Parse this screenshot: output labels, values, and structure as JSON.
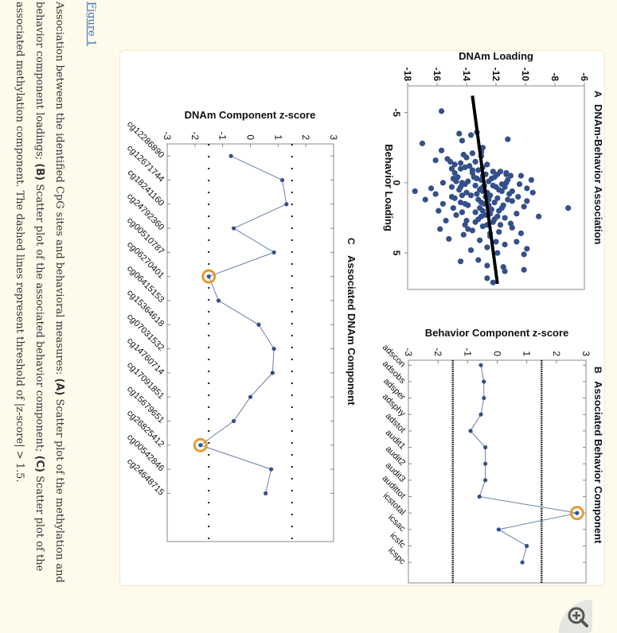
{
  "figure_link": "Figure 1",
  "caption": {
    "intro": "Association between the identified CpG sites and behavioral measures: ",
    "a_label": "(A)",
    "a_text": " Scatter plot of the methylation and behavior component loadings; ",
    "b_label": "(B)",
    "b_text": " Scatter plot of the associated behavior component; ",
    "c_label": "(C)",
    "c_text": " Scatter plot of the associated methylation component. The dashed lines represent threshold of |z-score| > 1.5."
  },
  "zoom_button": "zoom-in-icon",
  "colors": {
    "point": "#34508a",
    "highlight": "#e39b2f",
    "line": "#000000"
  },
  "chart_data": [
    {
      "panel": "A",
      "type": "scatter",
      "title": "DNAm-Behavior Association",
      "xlabel": "Behavior Loading",
      "ylabel": "DNAm Loading",
      "xlim": [
        -6.9,
        7.6
      ],
      "ylim": [
        -18,
        -6
      ],
      "xticks": [
        -5,
        0,
        5
      ],
      "yticks": [
        -18,
        -16,
        -14,
        -12,
        -10,
        -8,
        -6
      ],
      "grid": false,
      "regression_line": [
        [
          -6.2,
          -13.6
        ],
        [
          7.2,
          -11.9
        ]
      ],
      "points": [
        [
          -5.1,
          -15.7
        ],
        [
          -3.6,
          -13.3
        ],
        [
          -3.5,
          -14.5
        ],
        [
          -3.4,
          -13.7
        ],
        [
          -3.1,
          -11.2
        ],
        [
          -3.0,
          -14.3
        ],
        [
          -2.8,
          -17.0
        ],
        [
          -2.5,
          -12.9
        ],
        [
          -2.2,
          -13.0
        ],
        [
          -2.3,
          -15.7
        ],
        [
          -1.9,
          -13.0
        ],
        [
          -1.7,
          -15.3
        ],
        [
          -1.6,
          -16.1
        ],
        [
          -1.5,
          -15.1
        ],
        [
          -1.4,
          -14.4
        ],
        [
          -1.5,
          -13.4
        ],
        [
          -1.3,
          -12.6
        ],
        [
          -1.2,
          -13.8
        ],
        [
          -1.0,
          -15.0
        ],
        [
          -1.0,
          -14.4
        ],
        [
          -0.9,
          -13.6
        ],
        [
          -0.8,
          -12.2
        ],
        [
          -0.8,
          -11.7
        ],
        [
          -0.7,
          -11.3
        ],
        [
          -0.6,
          -11.9
        ],
        [
          -0.6,
          -12.7
        ],
        [
          -0.5,
          -10.3
        ],
        [
          -0.5,
          -11.0
        ],
        [
          -0.4,
          -12.1
        ],
        [
          -0.4,
          -13.5
        ],
        [
          -0.4,
          -14.6
        ],
        [
          -0.3,
          -14.9
        ],
        [
          -0.3,
          -12.3
        ],
        [
          -0.2,
          -9.6
        ],
        [
          -0.2,
          -11.2
        ],
        [
          -0.1,
          -12.5
        ],
        [
          -0.1,
          -13.9
        ],
        [
          0.0,
          -14.3
        ],
        [
          0.0,
          -15.6
        ],
        [
          0.1,
          -14.1
        ],
        [
          0.1,
          -11.6
        ],
        [
          0.1,
          -10.4
        ],
        [
          0.2,
          -12.8
        ],
        [
          0.2,
          -13.4
        ],
        [
          0.3,
          -15.0
        ],
        [
          0.3,
          -12.0
        ],
        [
          0.3,
          -11.4
        ],
        [
          0.4,
          -9.9
        ],
        [
          0.4,
          -16.4
        ],
        [
          0.5,
          -14.5
        ],
        [
          0.5,
          -13.1
        ],
        [
          0.5,
          -11.8
        ],
        [
          0.6,
          -10.9
        ],
        [
          0.6,
          -17.5
        ],
        [
          0.7,
          -14.0
        ],
        [
          0.7,
          -12.6
        ],
        [
          0.7,
          -9.5
        ],
        [
          0.8,
          -16.1
        ],
        [
          0.8,
          -11.1
        ],
        [
          0.9,
          -13.7
        ],
        [
          0.9,
          -12.4
        ],
        [
          1.0,
          -10.5
        ],
        [
          1.0,
          -15.0
        ],
        [
          1.1,
          -14.8
        ],
        [
          1.1,
          -11.9
        ],
        [
          1.2,
          -13.2
        ],
        [
          1.2,
          -16.8
        ],
        [
          1.3,
          -10.9
        ],
        [
          1.3,
          -9.9
        ],
        [
          1.4,
          -12.1
        ],
        [
          1.4,
          -14.4
        ],
        [
          1.5,
          -15.6
        ],
        [
          1.5,
          -12.8
        ],
        [
          1.6,
          -11.5
        ],
        [
          1.6,
          -13.9
        ],
        [
          1.7,
          -10.1
        ],
        [
          1.8,
          -7.1
        ],
        [
          1.8,
          -14.9
        ],
        [
          1.9,
          -12.3
        ],
        [
          2.0,
          -15.9
        ],
        [
          2.0,
          -11.8
        ],
        [
          2.1,
          -13.4
        ],
        [
          2.2,
          -10.6
        ],
        [
          2.3,
          -12.7
        ],
        [
          2.3,
          -14.7
        ],
        [
          2.4,
          -9.1
        ],
        [
          2.5,
          -11.4
        ],
        [
          2.6,
          -13.2
        ],
        [
          2.7,
          -15.4
        ],
        [
          2.8,
          -12.2
        ],
        [
          2.9,
          -11.0
        ],
        [
          3.0,
          -14.1
        ],
        [
          3.1,
          -12.9
        ],
        [
          3.2,
          -10.9
        ],
        [
          3.3,
          -15.8
        ],
        [
          3.4,
          -13.6
        ],
        [
          3.5,
          -11.8
        ],
        [
          3.6,
          -10.3
        ],
        [
          3.7,
          -14.2
        ],
        [
          3.8,
          -12.4
        ],
        [
          4.0,
          -15.2
        ],
        [
          4.1,
          -13.1
        ],
        [
          4.2,
          -10.6
        ],
        [
          4.4,
          -11.4
        ],
        [
          4.6,
          -12.6
        ],
        [
          4.7,
          -9.9
        ],
        [
          5.0,
          -11.9
        ],
        [
          5.1,
          -10.1
        ],
        [
          5.5,
          -13.2
        ],
        [
          5.6,
          -14.4
        ],
        [
          5.9,
          -12.6
        ],
        [
          6.0,
          -11.5
        ],
        [
          6.3,
          -11.4
        ],
        [
          6.2,
          -10.1
        ],
        [
          6.8,
          -12.6
        ],
        [
          7.1,
          -12.2
        ],
        [
          -2.0,
          -14.2
        ],
        [
          -2.1,
          -13.6
        ],
        [
          -1.8,
          -14.0
        ],
        [
          -0.2,
          -13.0
        ],
        [
          0.2,
          -12.2
        ],
        [
          0.4,
          -13.0
        ],
        [
          0.6,
          -12.9
        ],
        [
          0.8,
          -13.3
        ],
        [
          1.0,
          -12.7
        ],
        [
          1.2,
          -12.5
        ],
        [
          1.4,
          -13.0
        ],
        [
          1.6,
          -12.5
        ],
        [
          1.8,
          -13.1
        ],
        [
          2.0,
          -12.9
        ],
        [
          2.2,
          -12.4
        ],
        [
          2.4,
          -13.0
        ],
        [
          2.6,
          -12.1
        ],
        [
          2.8,
          -13.4
        ],
        [
          3.0,
          -12.6
        ],
        [
          -1.1,
          -12.9
        ],
        [
          -0.9,
          -13.2
        ],
        [
          -0.7,
          -13.6
        ],
        [
          -0.5,
          -12.9
        ],
        [
          -0.3,
          -13.3
        ],
        [
          -1.3,
          -14.8
        ],
        [
          -1.1,
          -14.1
        ],
        [
          -0.7,
          -14.8
        ],
        [
          -0.1,
          -14.7
        ],
        [
          0.3,
          -14.4
        ],
        [
          0.9,
          -14.3
        ],
        [
          1.5,
          -14.1
        ],
        [
          2.1,
          -14.3
        ],
        [
          2.7,
          -14.0
        ],
        [
          3.3,
          -13.9
        ],
        [
          -0.6,
          -11.3
        ],
        [
          0.0,
          -11.3
        ],
        [
          0.6,
          -11.6
        ],
        [
          1.2,
          -11.2
        ],
        [
          1.8,
          -11.6
        ],
        [
          2.4,
          -11.9
        ],
        [
          3.0,
          -11.7
        ],
        [
          3.6,
          -12.4
        ],
        [
          4.2,
          -12.0
        ],
        [
          4.8,
          -13.7
        ]
      ]
    },
    {
      "panel": "B",
      "type": "line",
      "title": "Associated Behavior Component",
      "xlabel": "",
      "ylabel": "Behavior Component z-score",
      "ylim": [
        -3,
        3
      ],
      "yticks": [
        -3,
        -2,
        -1,
        0,
        1,
        2,
        3
      ],
      "threshold_lines": [
        -1.5,
        1.5
      ],
      "categories": [
        "adscon",
        "adsobs",
        "adsper",
        "adsphy",
        "adstot",
        "audit1",
        "audit2",
        "audit3",
        "audittot",
        "icstotal",
        "icsac",
        "icsfc",
        "icspc"
      ],
      "values": [
        -0.55,
        -0.45,
        -0.45,
        -0.55,
        -0.9,
        -0.4,
        -0.4,
        -0.4,
        -0.6,
        2.7,
        0.05,
        1.0,
        0.85
      ],
      "highlighted": [
        "icstotal"
      ]
    },
    {
      "panel": "C",
      "type": "line",
      "title": "Associated DNAm Component",
      "xlabel": "",
      "ylabel": "DNAm Component z-score",
      "ylim": [
        -3,
        3
      ],
      "yticks": [
        -3,
        -2,
        -1,
        0,
        1,
        2,
        3
      ],
      "threshold_lines": [
        -1.5,
        1.5
      ],
      "categories": [
        "cg12286890",
        "cg12671744",
        "cg18241160",
        "cg24792360",
        "cg00510787",
        "cg06270401",
        "cg06415153",
        "cg15364618",
        "cg07031532",
        "cg14760714",
        "cg17091851",
        "cg15679651",
        "cg26825412",
        "cg00542846",
        "cg24648715"
      ],
      "values": [
        -0.7,
        1.15,
        1.3,
        -0.6,
        0.85,
        -1.5,
        -1.15,
        0.3,
        0.85,
        0.8,
        0.0,
        -0.6,
        -1.8,
        0.75,
        0.55
      ],
      "highlighted": [
        "cg06270401",
        "cg26825412"
      ]
    }
  ]
}
